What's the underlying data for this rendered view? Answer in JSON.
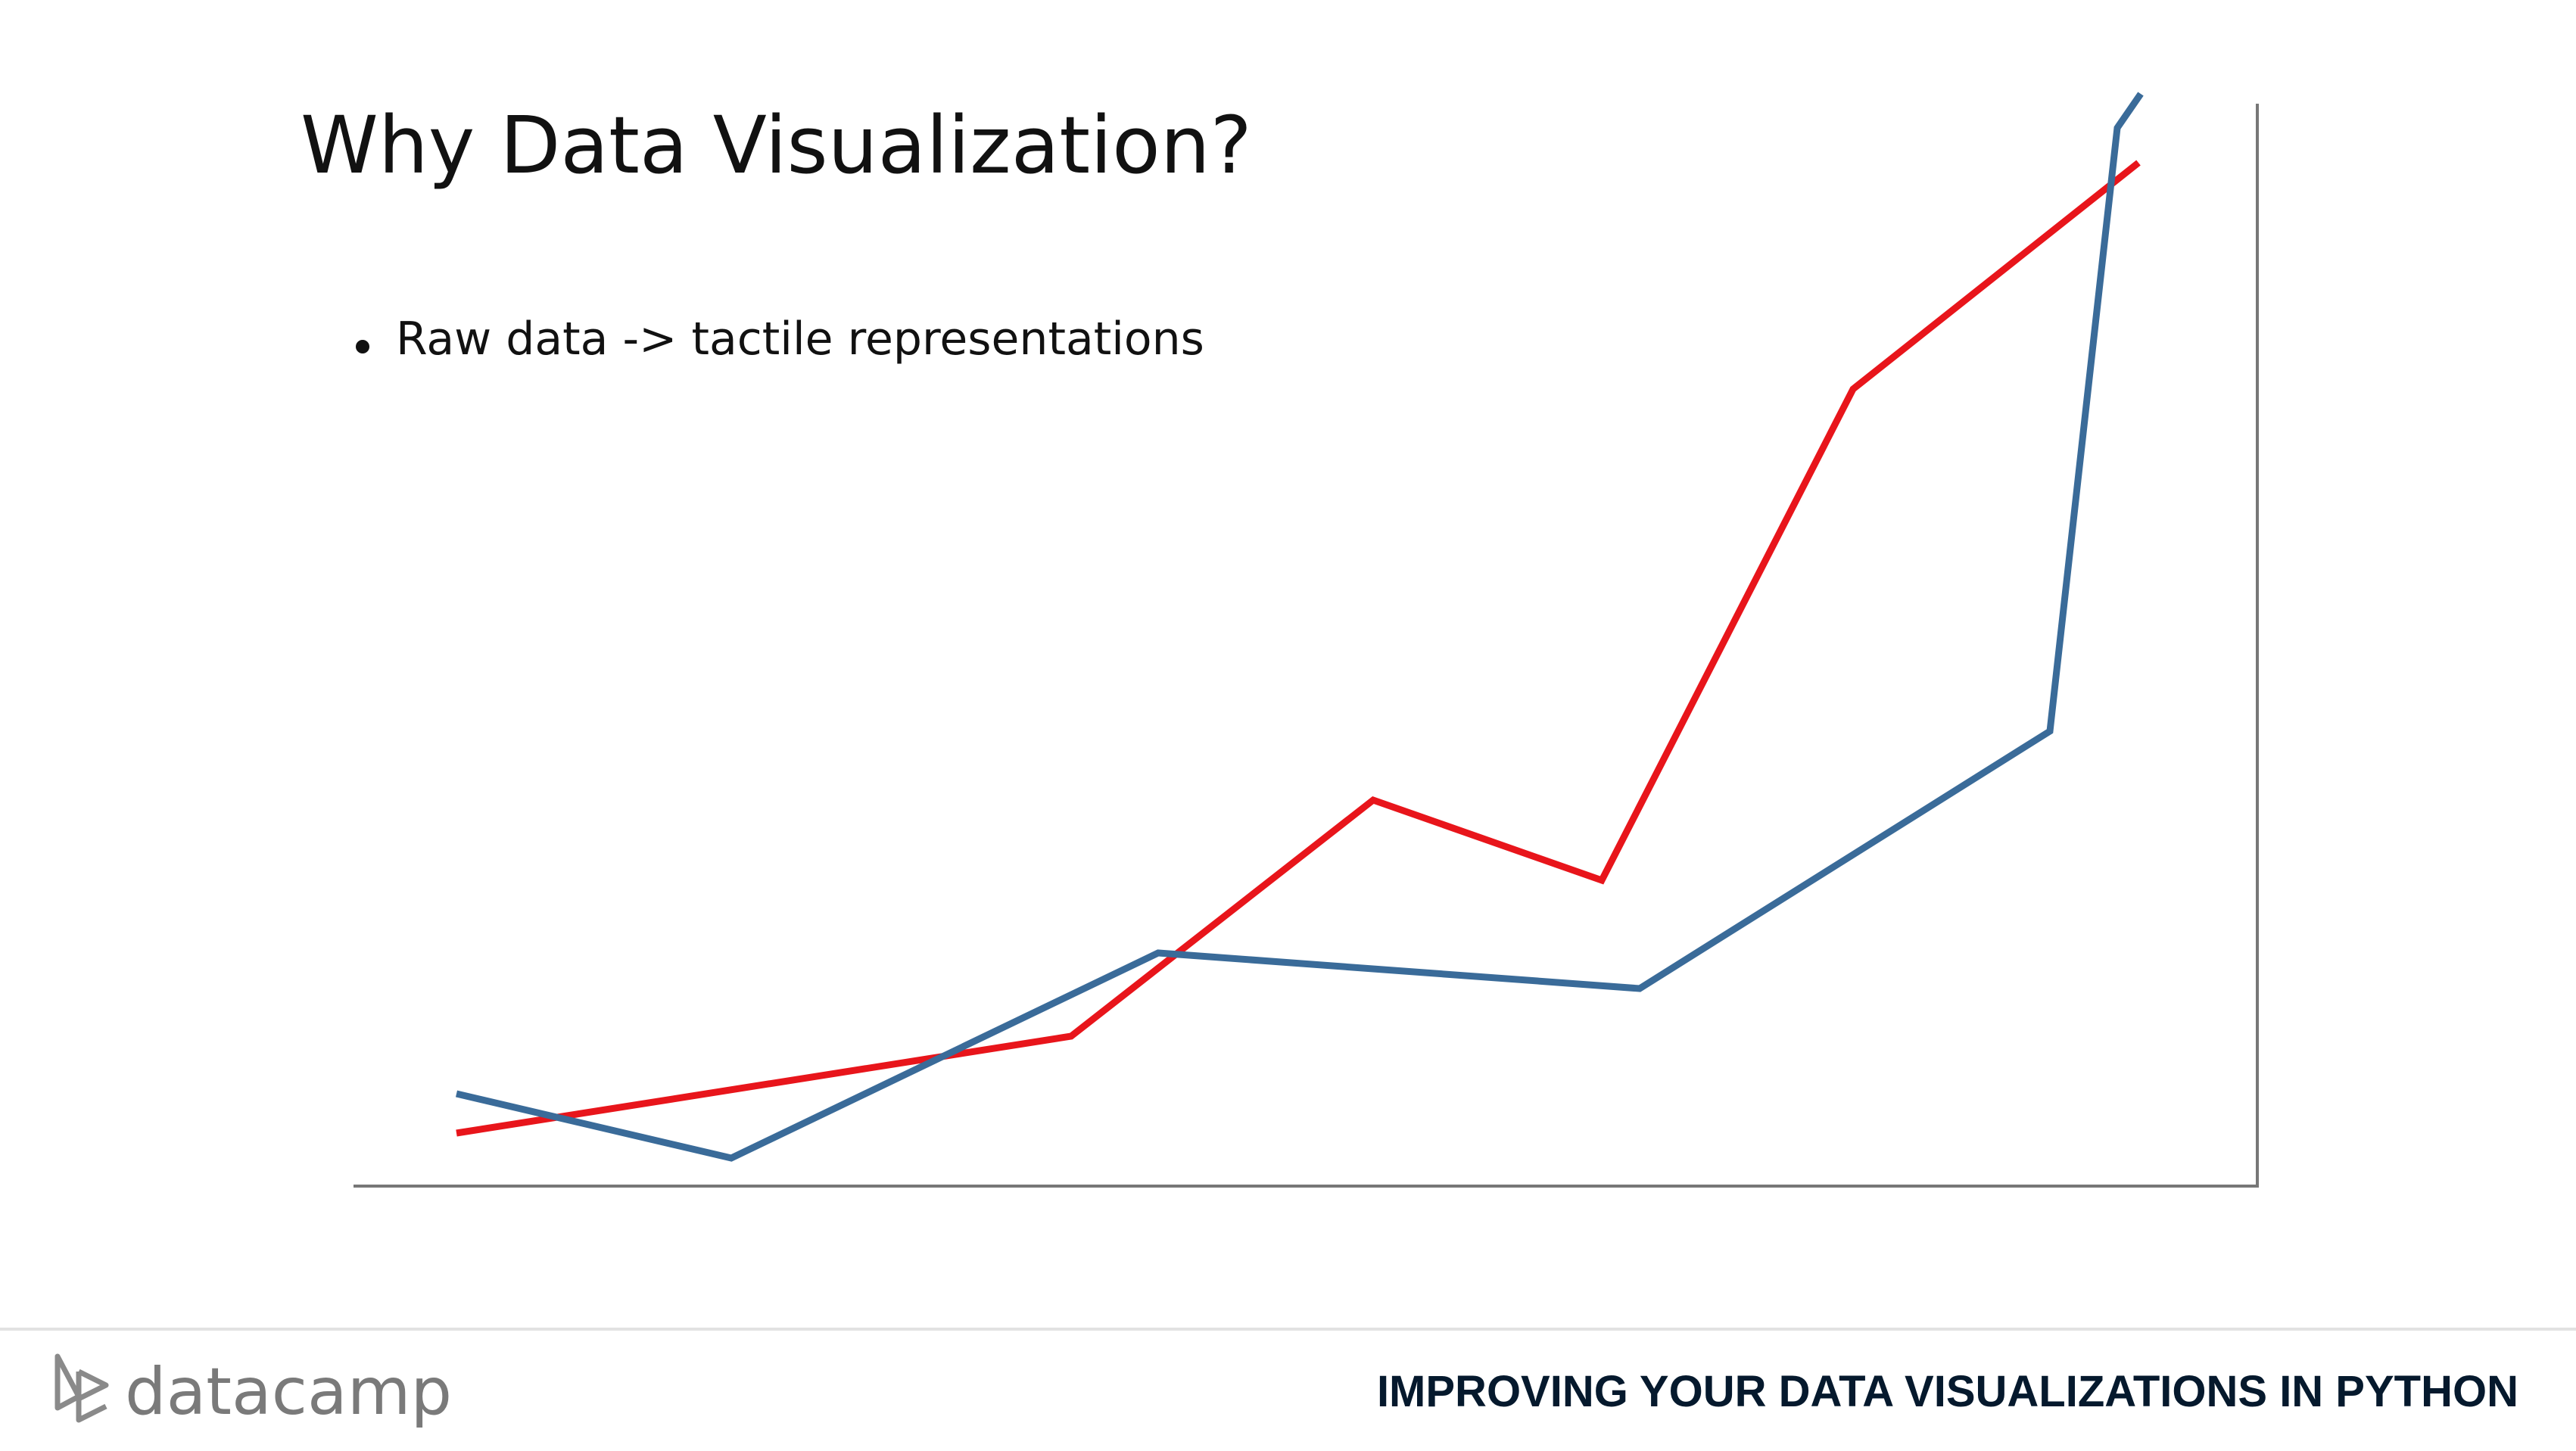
{
  "title": "Why Data Visualization?",
  "bullets": [
    "Raw data -> tactile representations"
  ],
  "footer": {
    "brand": "datacamp",
    "course": "IMPROVING YOUR DATA VISUALIZATIONS IN PYTHON"
  }
}
